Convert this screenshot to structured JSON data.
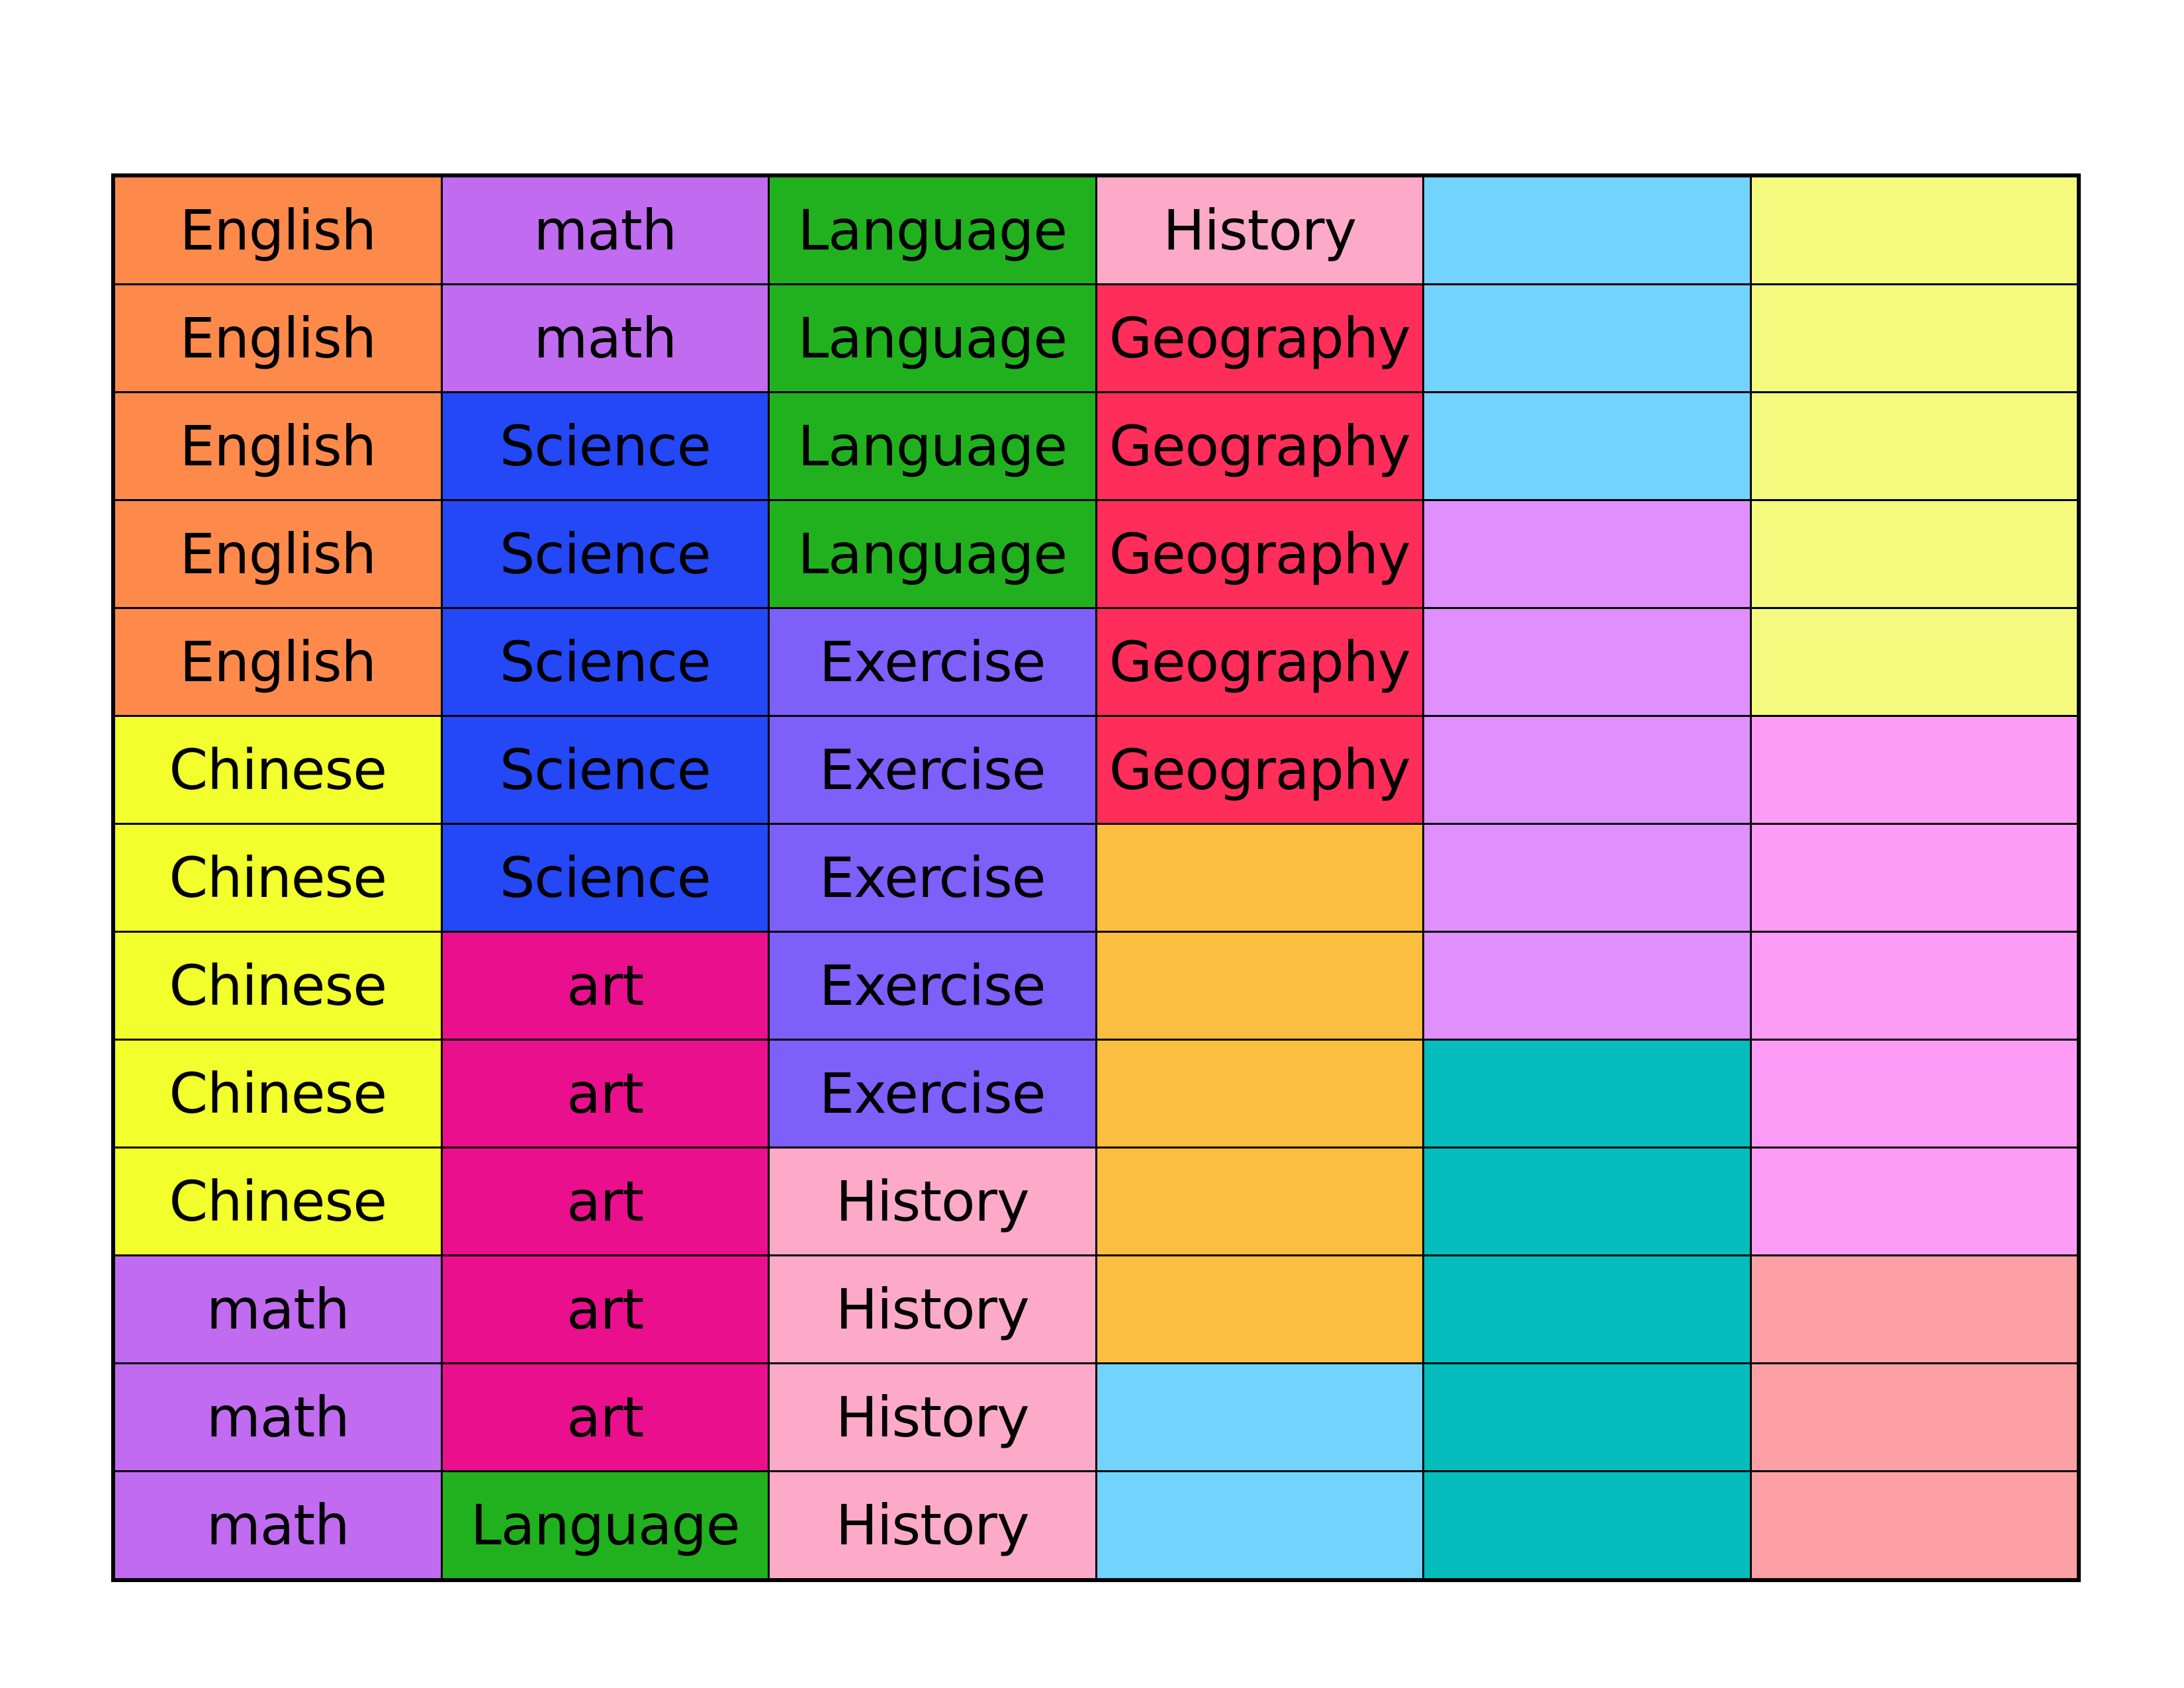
{
  "palette": {
    "english": "#FD8A4B",
    "math": "#C06BF0",
    "language": "#22B11E",
    "history": "#FDA9C8",
    "geography": "#FF2D5A",
    "science": "#2448F5",
    "chinese": "#F2FF2C",
    "exercise": "#7D5FF9",
    "art": "#EA0F8D",
    "light_blue": "#72D3FD",
    "pale_yellow": "#F3FA7D",
    "lavender": "#DF90FD",
    "light_pink": "#FD9CF6",
    "orange_yellow": "#FBBE40",
    "teal": "#05BDBD",
    "salmon": "#FDA0A5"
  },
  "rows": [
    [
      {
        "label": "English",
        "color": "#FD8A4B"
      },
      {
        "label": "math",
        "color": "#C06BF0"
      },
      {
        "label": "Language",
        "color": "#22B11E"
      },
      {
        "label": "History",
        "color": "#FDA9C8"
      },
      {
        "label": "",
        "color": "#72D3FD"
      },
      {
        "label": "",
        "color": "#F3FA7D"
      }
    ],
    [
      {
        "label": "English",
        "color": "#FD8A4B"
      },
      {
        "label": "math",
        "color": "#C06BF0"
      },
      {
        "label": "Language",
        "color": "#22B11E"
      },
      {
        "label": "Geography",
        "color": "#FF2D5A"
      },
      {
        "label": "",
        "color": "#72D3FD"
      },
      {
        "label": "",
        "color": "#F3FA7D"
      }
    ],
    [
      {
        "label": "English",
        "color": "#FD8A4B"
      },
      {
        "label": "Science",
        "color": "#2448F5"
      },
      {
        "label": "Language",
        "color": "#22B11E"
      },
      {
        "label": "Geography",
        "color": "#FF2D5A"
      },
      {
        "label": "",
        "color": "#72D3FD"
      },
      {
        "label": "",
        "color": "#F3FA7D"
      }
    ],
    [
      {
        "label": "English",
        "color": "#FD8A4B"
      },
      {
        "label": "Science",
        "color": "#2448F5"
      },
      {
        "label": "Language",
        "color": "#22B11E"
      },
      {
        "label": "Geography",
        "color": "#FF2D5A"
      },
      {
        "label": "",
        "color": "#DF90FD"
      },
      {
        "label": "",
        "color": "#F3FA7D"
      }
    ],
    [
      {
        "label": "English",
        "color": "#FD8A4B"
      },
      {
        "label": "Science",
        "color": "#2448F5"
      },
      {
        "label": "Exercise",
        "color": "#7D5FF9"
      },
      {
        "label": "Geography",
        "color": "#FF2D5A"
      },
      {
        "label": "",
        "color": "#DF90FD"
      },
      {
        "label": "",
        "color": "#F3FA7D"
      }
    ],
    [
      {
        "label": "Chinese",
        "color": "#F2FF2C"
      },
      {
        "label": "Science",
        "color": "#2448F5"
      },
      {
        "label": "Exercise",
        "color": "#7D5FF9"
      },
      {
        "label": "Geography",
        "color": "#FF2D5A"
      },
      {
        "label": "",
        "color": "#DF90FD"
      },
      {
        "label": "",
        "color": "#FD9CF6"
      }
    ],
    [
      {
        "label": "Chinese",
        "color": "#F2FF2C"
      },
      {
        "label": "Science",
        "color": "#2448F5"
      },
      {
        "label": "Exercise",
        "color": "#7D5FF9"
      },
      {
        "label": "",
        "color": "#FBBE40"
      },
      {
        "label": "",
        "color": "#DF90FD"
      },
      {
        "label": "",
        "color": "#FD9CF6"
      }
    ],
    [
      {
        "label": "Chinese",
        "color": "#F2FF2C"
      },
      {
        "label": "art",
        "color": "#EA0F8D"
      },
      {
        "label": "Exercise",
        "color": "#7D5FF9"
      },
      {
        "label": "",
        "color": "#FBBE40"
      },
      {
        "label": "",
        "color": "#DF90FD"
      },
      {
        "label": "",
        "color": "#FD9CF6"
      }
    ],
    [
      {
        "label": "Chinese",
        "color": "#F2FF2C"
      },
      {
        "label": "art",
        "color": "#EA0F8D"
      },
      {
        "label": "Exercise",
        "color": "#7D5FF9"
      },
      {
        "label": "",
        "color": "#FBBE40"
      },
      {
        "label": "",
        "color": "#05BDBD"
      },
      {
        "label": "",
        "color": "#FD9CF6"
      }
    ],
    [
      {
        "label": "Chinese",
        "color": "#F2FF2C"
      },
      {
        "label": "art",
        "color": "#EA0F8D"
      },
      {
        "label": "History",
        "color": "#FDA9C8"
      },
      {
        "label": "",
        "color": "#FBBE40"
      },
      {
        "label": "",
        "color": "#05BDBD"
      },
      {
        "label": "",
        "color": "#FD9CF6"
      }
    ],
    [
      {
        "label": "math",
        "color": "#C06BF0"
      },
      {
        "label": "art",
        "color": "#EA0F8D"
      },
      {
        "label": "History",
        "color": "#FDA9C8"
      },
      {
        "label": "",
        "color": "#FBBE40"
      },
      {
        "label": "",
        "color": "#05BDBD"
      },
      {
        "label": "",
        "color": "#FDA0A5"
      }
    ],
    [
      {
        "label": "math",
        "color": "#C06BF0"
      },
      {
        "label": "art",
        "color": "#EA0F8D"
      },
      {
        "label": "History",
        "color": "#FDA9C8"
      },
      {
        "label": "",
        "color": "#72D3FD"
      },
      {
        "label": "",
        "color": "#05BDBD"
      },
      {
        "label": "",
        "color": "#FDA0A5"
      }
    ],
    [
      {
        "label": "math",
        "color": "#C06BF0"
      },
      {
        "label": "Language",
        "color": "#22B11E"
      },
      {
        "label": "History",
        "color": "#FDA9C8"
      },
      {
        "label": "",
        "color": "#72D3FD"
      },
      {
        "label": "",
        "color": "#05BDBD"
      },
      {
        "label": "",
        "color": "#FDA0A5"
      }
    ]
  ]
}
